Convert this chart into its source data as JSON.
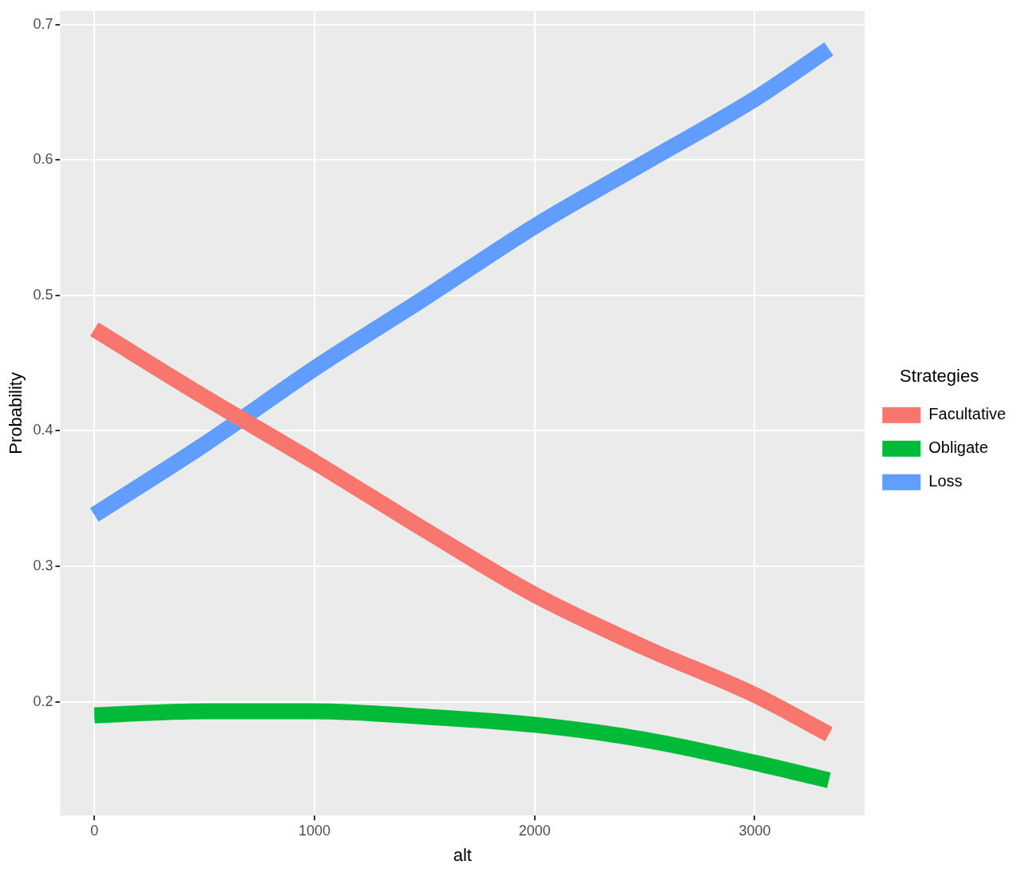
{
  "chart_data": {
    "type": "line",
    "xlabel": "alt",
    "ylabel": "Probability",
    "legend_title": "Strategies",
    "legend": "right",
    "grid": true,
    "xlim": [
      -155,
      3500
    ],
    "xticks": [
      0,
      1000,
      2000,
      3000
    ],
    "ylim": [
      0.116,
      0.71
    ],
    "yticks": [
      0.2,
      0.3,
      0.4,
      0.5,
      0.6,
      0.7
    ],
    "x": [
      0,
      500,
      1000,
      1500,
      2000,
      2500,
      3000,
      3337
    ],
    "series": [
      {
        "name": "Facultative",
        "color": "#f8766d",
        "values": [
          0.475,
          0.425,
          0.377,
          0.327,
          0.279,
          0.24,
          0.205,
          0.176
        ]
      },
      {
        "name": "Obligate",
        "color": "#00ba38",
        "values": [
          0.19,
          0.193,
          0.193,
          0.189,
          0.183,
          0.172,
          0.155,
          0.142
        ]
      },
      {
        "name": "Loss",
        "color": "#619cff",
        "values": [
          0.338,
          0.39,
          0.446,
          0.498,
          0.551,
          0.598,
          0.645,
          0.682
        ]
      }
    ]
  }
}
